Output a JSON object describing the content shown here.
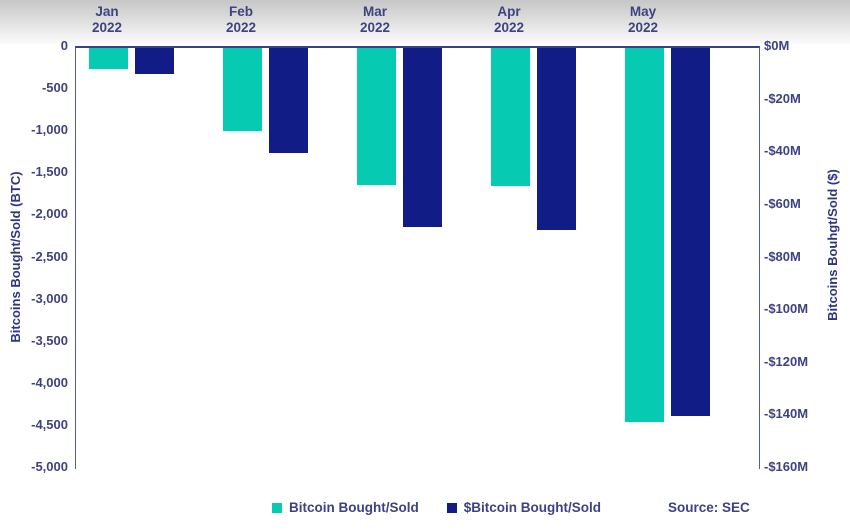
{
  "chart_data": {
    "type": "bar",
    "title": "",
    "grid": false,
    "legend_position": "bottom",
    "source": "Source: SEC",
    "categories": [
      "Jan 2022",
      "Feb 2022",
      "Mar 2022",
      "Apr 2022",
      "May 2022"
    ],
    "series": [
      {
        "name": "Bitcoin Bought/Sold",
        "axis": "left",
        "unit": "BTC",
        "color": "#06CBB2",
        "values": [
          -250,
          -980,
          -1630,
          -1640,
          -4440
        ]
      },
      {
        "name": "$Bitcoin Bought/Sold",
        "axis": "right",
        "unit": "$M",
        "color": "#111C87",
        "values": [
          -10,
          -40,
          -68,
          -69,
          -140
        ]
      }
    ],
    "left_axis": {
      "label": "Bitcoins Bought/Sold (BTC)",
      "min": -5000,
      "max": 0,
      "ticks": [
        "0",
        "-500",
        "-1,000",
        "-1,500",
        "-2,000",
        "-2,500",
        "-3,000",
        "-3,500",
        "-4,000",
        "-4,500",
        "-5,000"
      ]
    },
    "right_axis": {
      "label": "Bitcoins Bouhgt/Sold ($)",
      "min": -160,
      "max": 0,
      "ticks": [
        "$0M",
        "-$20M",
        "-$40M",
        "-$60M",
        "-$80M",
        "-$100M",
        "-$120M",
        "-$140M",
        "-$160M"
      ]
    },
    "colors": {
      "btc_series": "#06CBB2",
      "usd_series": "#111C87",
      "text": "#3E4283",
      "axis_line": "#3A4084"
    }
  }
}
